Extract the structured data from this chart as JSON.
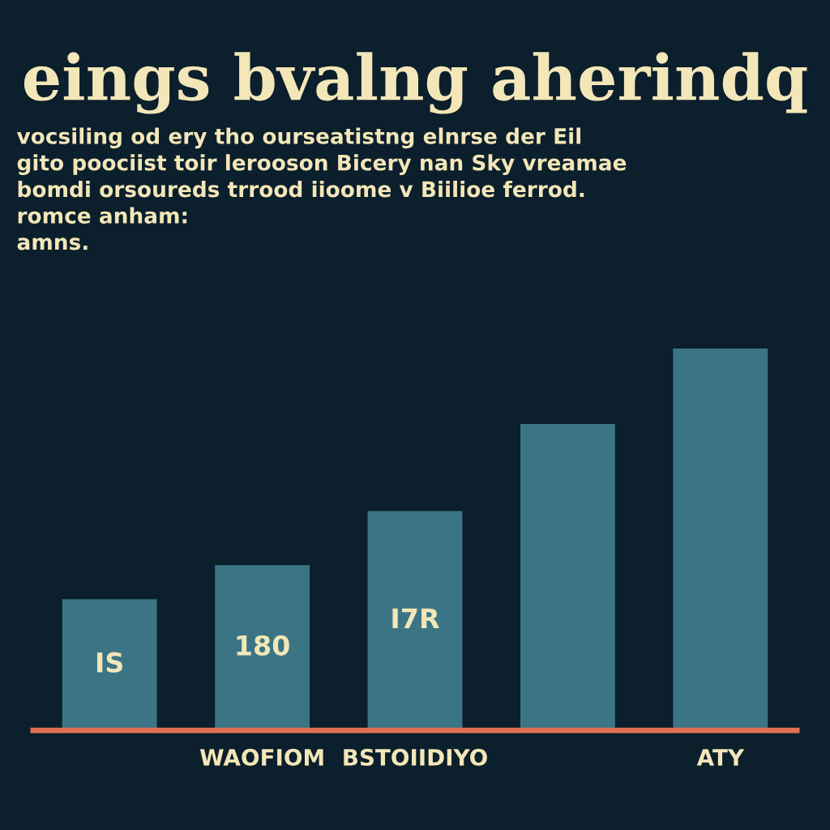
{
  "chart_data": {
    "type": "bar",
    "title": "eings bvalng aherindq",
    "subtitle": "vocsiling od ery tho ourseatistng elnrse der Eil\ngito poociist toir lerooson Bicery nan Sky vreamae\nbomdi orsoureds trrood iioome v Biilioe ferrod.\nromce anham:\namns.",
    "categories": [
      null,
      "WAOFIOM",
      "BSTOIIDIYO",
      null,
      "ATY"
    ],
    "values": [
      143,
      180,
      239,
      334,
      416
    ],
    "value_labels": [
      "IS",
      "180",
      "I7R",
      null,
      null
    ],
    "color": "#3b7585",
    "grid": false,
    "legend": false
  }
}
